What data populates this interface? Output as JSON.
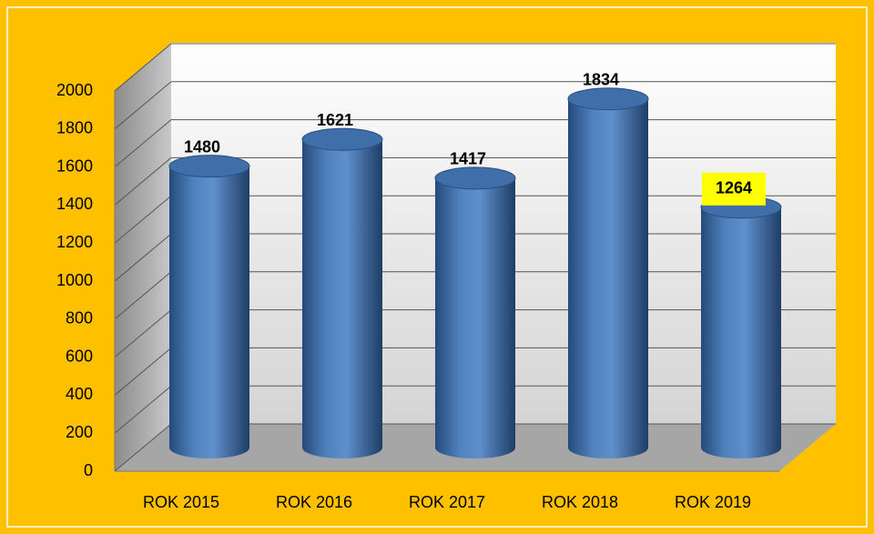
{
  "chart_data": {
    "type": "bar3d-cylinder",
    "categories": [
      "ROK 2015",
      "ROK 2016",
      "ROK 2017",
      "ROK 2018",
      "ROK 2019"
    ],
    "values": [
      1480,
      1621,
      1417,
      1834,
      1264
    ],
    "color": "#4f81bd",
    "label_backgrounds": [
      null,
      null,
      null,
      null,
      "#ffff00"
    ],
    "ylim": [
      0,
      2000
    ],
    "yticks": [
      0,
      200,
      400,
      600,
      800,
      1000,
      1200,
      1400,
      1600,
      1800,
      2000
    ],
    "grid": true
  }
}
